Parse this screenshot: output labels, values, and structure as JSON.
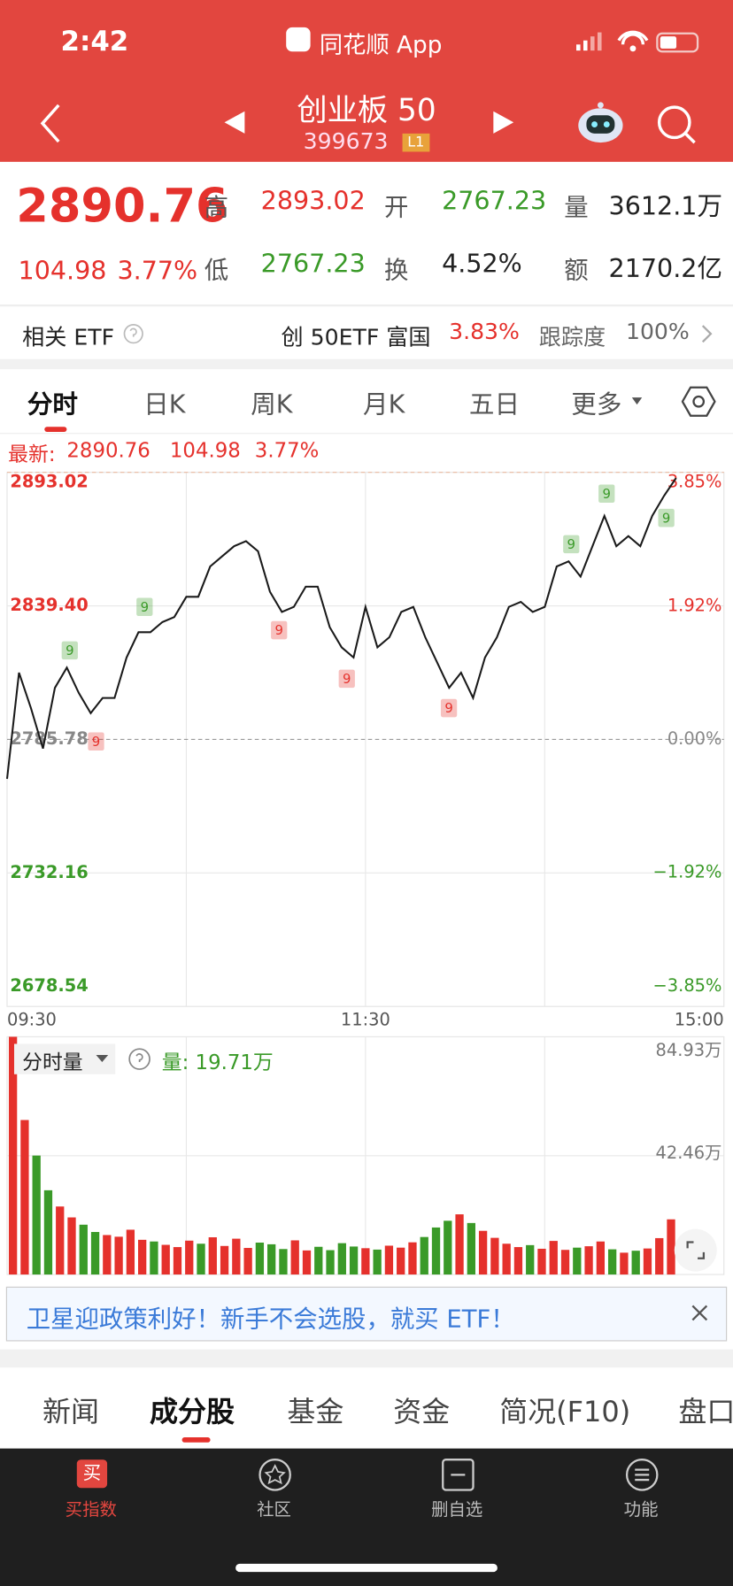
{
  "status_bar": {
    "time": "2:42",
    "app": "同花顺 App"
  },
  "header": {
    "title": "创业板 50",
    "code": "399673",
    "badge": "L1"
  },
  "quote": {
    "price": "2890.76",
    "change": "104.98",
    "change_pct": "3.77%",
    "stats": [
      {
        "label": "高",
        "value": "2893.02"
      },
      {
        "label": "开",
        "value": "2767.23"
      },
      {
        "label": "量",
        "value": "3612.1万"
      },
      {
        "label": "低",
        "value": "2767.23"
      },
      {
        "label": "换",
        "value": "4.52%"
      },
      {
        "label": "额",
        "value": "2170.2亿"
      }
    ]
  },
  "etf": {
    "label": "相关 ETF",
    "name": "创 50ETF 富国",
    "change_pct": "3.83%",
    "tracking_label": "跟踪度",
    "tracking": "100%"
  },
  "tabs": [
    "分时",
    "日K",
    "周K",
    "月K",
    "五日",
    "更多"
  ],
  "latest": {
    "label": "最新:",
    "price": "2890.76",
    "change": "104.98",
    "change_pct": "3.77%"
  },
  "volume_panel": {
    "selector": "分时量",
    "current": "量: 19.71万"
  },
  "banner": "卫星迎政策利好！新手不会选股，就买 ETF！",
  "sections": [
    "新闻",
    "成分股",
    "基金",
    "资金",
    "简况(F10)",
    "盘口"
  ],
  "bottom_nav": {
    "icon": "买",
    "items": [
      "买指数",
      "社区",
      "删自选",
      "功能"
    ]
  },
  "chart_data": [
    {
      "type": "line",
      "categories": [
        "09:30",
        null,
        null,
        null,
        null,
        null,
        null,
        null,
        null,
        null,
        null,
        null,
        null,
        null,
        null,
        null,
        null,
        null,
        null,
        null,
        null,
        null,
        null,
        null,
        null,
        null,
        null,
        null,
        null,
        null,
        "11:30",
        null,
        null,
        null,
        null,
        null,
        null,
        null,
        null,
        null,
        null,
        null,
        null,
        null,
        null,
        null,
        null,
        null,
        null,
        null,
        null,
        null,
        null,
        null,
        null,
        null,
        null,
        null,
        null,
        null,
        "15:00"
      ],
      "series": [
        {
          "color": "#1a1a1a",
          "values": [
            2769.94,
            2812.59,
            2798.37,
            2782.12,
            2806.5,
            2814.62,
            2804.47,
            2796.34,
            2802.44,
            2802.44,
            2818.68,
            2828.84,
            2828.84,
            2832.9,
            2834.93,
            2843.06,
            2843.06,
            2855.24,
            2859.3,
            2863.37,
            2865.4,
            2861.34,
            2845.09,
            2836.96,
            2838.99,
            2847.12,
            2847.12,
            2830.87,
            2822.75,
            2818.68,
            2838.99,
            2822.75,
            2826.81,
            2836.96,
            2838.99,
            2826.81,
            2816.65,
            2806.5,
            2812.59,
            2802.44,
            2818.68,
            2826.81,
            2838.99,
            2841.02,
            2836.96,
            2838.99,
            2855.24,
            2857.27,
            2851.18,
            2863.37,
            2875.55,
            2863.37,
            2867.43,
            2863.37,
            2875.55,
            2883.68,
            2890.76,
            null,
            null,
            null,
            null
          ]
        }
      ],
      "ylim": [
        2678.54,
        2893.02
      ],
      "yticks": [
        2678.54,
        2732.16,
        2785.78,
        {
          "value": 2839.4,
          "label": "2839.40"
        },
        2893.02
      ],
      "y2lim": [
        -3.85,
        3.85
      ],
      "y2ticks": [
        {
          "value": -3.85,
          "label": "−3.85%"
        },
        {
          "value": -1.92,
          "label": "−1.92%"
        },
        {
          "value": 0,
          "label": "0.00%"
        },
        {
          "value": 1.92,
          "label": "1.92%"
        },
        {
          "value": 3.85,
          "label": "3.85%"
        }
      ],
      "grid": true,
      "annotations": [
        {
          "text": "9",
          "color": "#3a9a28"
        },
        {
          "text": "9",
          "color": "#3a9a28"
        },
        {
          "text": "9",
          "color": "#3a9a28"
        },
        {
          "text": "9",
          "color": "#3a9a28"
        },
        {
          "text": "9",
          "color": "#3a9a28"
        },
        {
          "text": "9",
          "color": "#e5312c"
        },
        {
          "text": "9",
          "color": "#e5312c"
        },
        {
          "text": "9",
          "color": "#e5312c"
        },
        {
          "text": "9",
          "color": "#e5312c"
        }
      ]
    },
    {
      "type": "bar",
      "values": [
        84.93,
        55.2,
        42.5,
        30.1,
        24.3,
        20.4,
        17.8,
        15.2,
        14.1,
        13.5,
        16.0,
        12.4,
        11.8,
        10.6,
        9.8,
        12.1,
        11.0,
        13.3,
        10.2,
        12.8,
        9.5,
        11.4,
        10.8,
        9.1,
        12.2,
        8.6,
        9.9,
        8.7,
        11.2,
        10.0,
        9.4,
        8.9,
        10.3,
        9.6,
        11.5,
        13.4,
        16.8,
        19.2,
        21.5,
        18.4,
        15.6,
        13.1,
        11.0,
        9.8,
        10.5,
        9.2,
        12.0,
        8.8,
        9.6,
        10.1,
        11.8,
        9.0,
        7.8,
        8.5,
        9.3,
        13.0,
        19.71,
        null,
        null,
        null,
        null
      ],
      "colors": [
        "#e5312c",
        "#e5312c",
        "#3a9a28",
        "#3a9a28",
        "#e5312c",
        "#e5312c",
        "#3a9a28",
        "#3a9a28",
        "#e5312c",
        "#e5312c",
        "#e5312c",
        "#e5312c",
        "#3a9a28",
        "#e5312c",
        "#e5312c",
        "#e5312c",
        "#3a9a28",
        "#e5312c",
        "#e5312c",
        "#e5312c",
        "#e5312c",
        "#3a9a28",
        "#3a9a28",
        "#3a9a28",
        "#e5312c",
        "#e5312c",
        "#3a9a28",
        "#3a9a28",
        "#3a9a28",
        "#3a9a28",
        "#e5312c",
        "#3a9a28",
        "#e5312c",
        "#e5312c",
        "#e5312c",
        "#3a9a28",
        "#3a9a28",
        "#3a9a28",
        "#e5312c",
        "#3a9a28",
        "#e5312c",
        "#e5312c",
        "#e5312c",
        "#e5312c",
        "#3a9a28",
        "#e5312c",
        "#e5312c",
        "#e5312c",
        "#3a9a28",
        "#e5312c",
        "#e5312c",
        "#3a9a28",
        "#e5312c",
        "#3a9a28",
        "#e5312c",
        "#e5312c",
        "#e5312c",
        null,
        null,
        null,
        null
      ],
      "ylim": [
        0,
        84.93
      ],
      "yticks": [
        {
          "value": 42.46,
          "label": "42.46万"
        },
        {
          "value": 84.93,
          "label": "84.93万"
        }
      ]
    }
  ]
}
